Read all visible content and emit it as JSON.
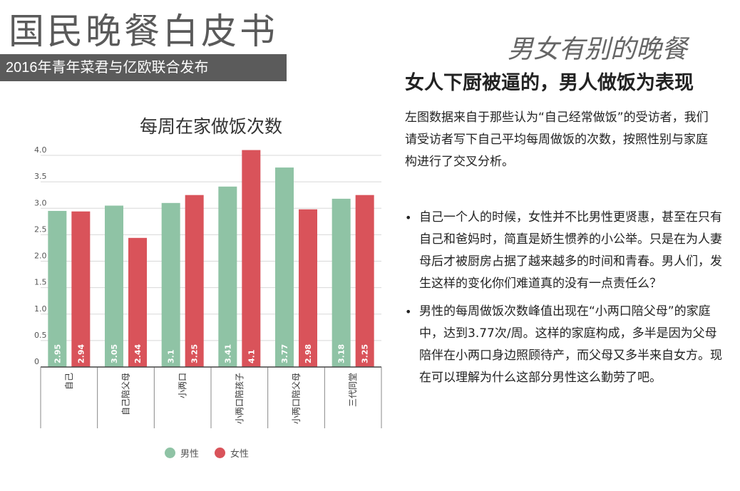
{
  "header": {
    "title": "国民晚餐白皮书",
    "subtitle": "2016年青年菜君与亿欧联合发布"
  },
  "article": {
    "script_title": "男女有别的晚餐",
    "heading": "女人下厨被逼的，男人做饭为表现",
    "intro": "左图数据来自于那些认为“自己经常做饭”的受访者，我们请受访者写下自己平均每周做饭的次数，按照性别与家庭构进行了交叉分析。",
    "bullets": [
      "自己一个人的时候，女性并不比男性更贤惠，甚至在只有自己和爸妈时，简直是娇生惯养的小公举。只是在为人妻母后才被厨房占据了越来越多的时间和青春。男人们，发生这样的变化你们难道真的没有一点责任么？",
      "男性的每周做饭次数峰值出现在“小两口陪父母”的家庭中，达到3.77次/周。这样的家庭构成，多半是因为父母陪伴在小两口身边照顾待产，而父母又多半来自女方。现在可以理解为什么这部分男性这么勤劳了吧。"
    ]
  },
  "chart_data": {
    "type": "bar",
    "title": "每周在家做饭次数",
    "categories": [
      "自己",
      "自己陪父母",
      "小两口",
      "小两口陪孩子",
      "小两口陪父母",
      "三代同堂"
    ],
    "series": [
      {
        "name": "男性",
        "values": [
          2.95,
          3.05,
          3.1,
          3.41,
          3.77,
          3.18
        ],
        "color": "#8fc3a5"
      },
      {
        "name": "女性",
        "values": [
          2.94,
          2.44,
          3.25,
          4.1,
          2.98,
          3.25
        ],
        "color": "#d9535a"
      }
    ],
    "value_labels": {
      "男性": [
        "2.95",
        "3.05",
        "3.1",
        "3.41",
        "3.77",
        "3.18"
      ],
      "女性": [
        "2.94",
        "2.44",
        "3.25",
        "4.1",
        "2.98",
        "3.25"
      ]
    },
    "yticks": [
      "0",
      "0.5",
      "1.0",
      "1.5",
      "2.0",
      "2.5",
      "3.0",
      "3.5",
      "4.0"
    ],
    "ylim": [
      0,
      4.0
    ],
    "grid": true,
    "legend_position": "bottom"
  }
}
